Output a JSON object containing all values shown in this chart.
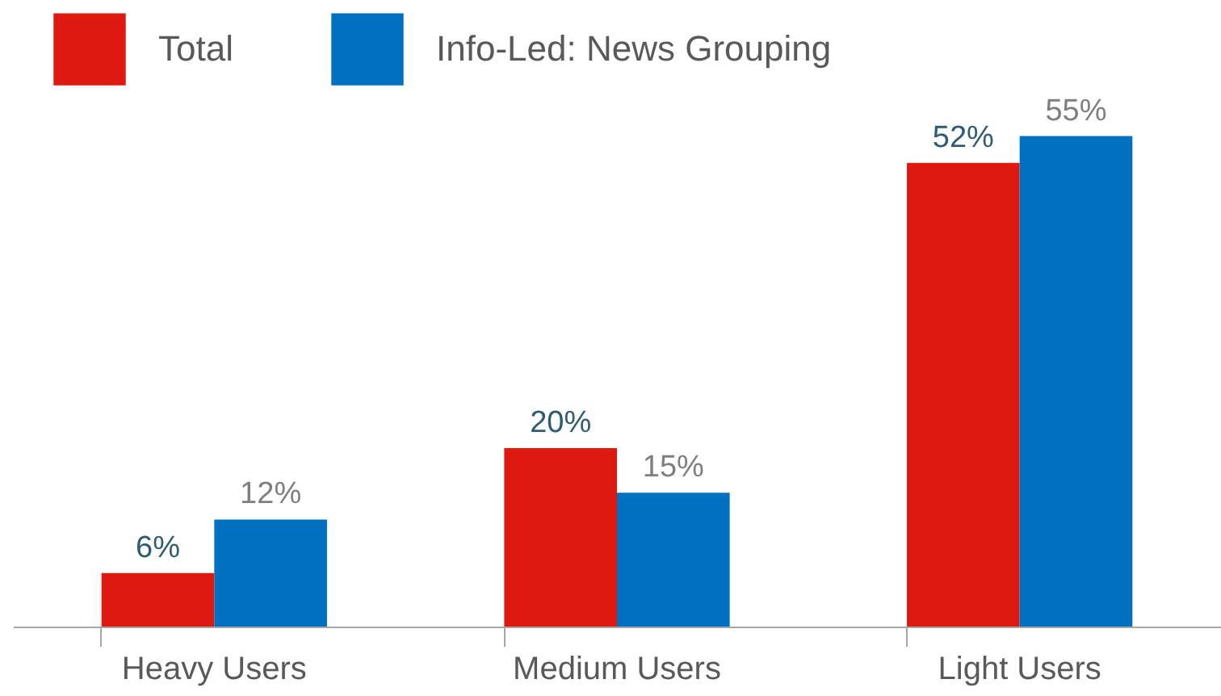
{
  "chart_data": {
    "type": "bar",
    "categories": [
      "Heavy Users",
      "Medium Users",
      "Light Users"
    ],
    "series": [
      {
        "name": "Total",
        "color": "#de1a10",
        "values": [
          6,
          20,
          52
        ],
        "value_labels": [
          "6%",
          "20%",
          "52%"
        ]
      },
      {
        "name": "Info-Led:  News  Grouping",
        "color": "#0070c0",
        "values": [
          12,
          15,
          55
        ],
        "value_labels": [
          "12%",
          "15%",
          "55%"
        ]
      }
    ],
    "legend": "top left"
  }
}
